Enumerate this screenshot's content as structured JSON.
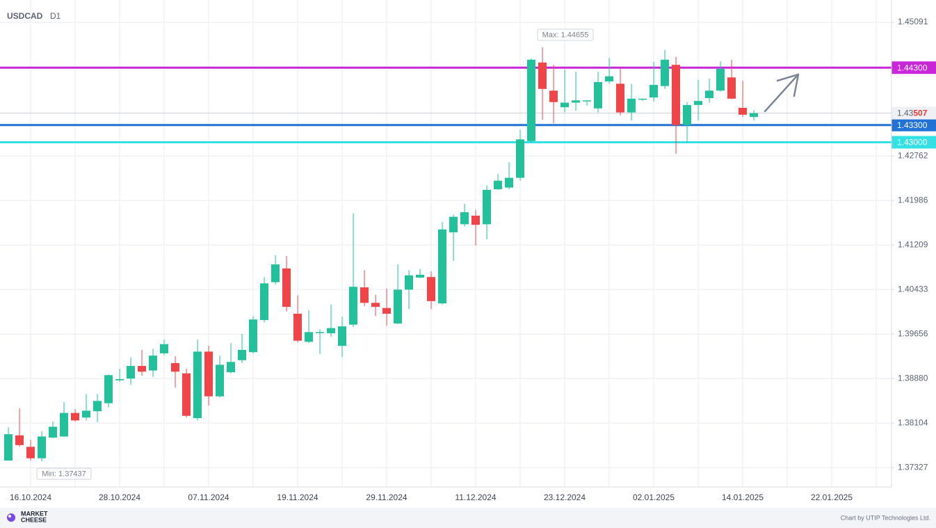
{
  "chart_data": {
    "type": "candlestick",
    "title": "USDCAD",
    "subtitle": "D1",
    "categories": [
      null,
      null,
      "16.10.2024",
      null,
      null,
      null,
      null,
      null,
      null,
      null,
      "28.10.2024",
      null,
      null,
      null,
      null,
      null,
      null,
      null,
      "07.11.2024",
      null,
      null,
      null,
      null,
      null,
      null,
      null,
      "19.11.2024",
      null,
      null,
      null,
      null,
      null,
      null,
      null,
      "29.11.2024",
      null,
      null,
      null,
      null,
      null,
      null,
      null,
      "11.12.2024",
      null,
      null,
      null,
      null,
      null,
      null,
      null,
      "23.12.2024",
      null,
      null,
      null,
      null,
      null,
      null,
      null,
      "02.01.2025",
      null,
      null,
      null,
      null,
      null,
      null,
      null,
      "14.01.2025",
      null,
      null,
      null,
      null,
      null,
      null,
      null,
      "22.01.2025",
      null,
      null,
      null,
      null,
      null
    ],
    "open": [
      1.3745,
      1.3789,
      1.3769,
      1.3749,
      1.3785,
      1.3787,
      1.3828,
      1.382,
      1.3831,
      1.3845,
      1.3885,
      1.3888,
      1.391,
      1.3902,
      1.3932,
      1.3915,
      1.3897,
      1.3819,
      1.3935,
      1.3857,
      1.3899,
      1.392,
      1.3934,
      1.399,
      1.4056,
      1.408,
      1.4001,
      1.3952,
      1.3968,
      1.3967,
      1.3945,
      1.3982,
      1.4047,
      1.402,
      1.4011,
      1.3984,
      1.4043,
      1.4064,
      1.4065,
      1.4019,
      1.4143,
      1.4157,
      1.4172,
      1.4157,
      1.4218,
      1.4221,
      1.4238,
      1.4302,
      1.4439,
      1.439,
      1.4361,
      1.4369,
      1.4372,
      1.4359,
      1.4406,
      1.4402,
      1.4352,
      1.4375,
      1.4378,
      1.4398,
      1.4435,
      1.433,
      1.4365,
      1.4377,
      1.439,
      1.4413,
      1.436,
      1.4344,
      null,
      null,
      null,
      null,
      null,
      null,
      null,
      null,
      null,
      null,
      null,
      null
    ],
    "high": [
      1.3803,
      1.3836,
      1.3781,
      1.3796,
      1.3813,
      1.3847,
      1.3835,
      1.3861,
      1.3861,
      1.3895,
      1.3905,
      1.3925,
      1.3938,
      1.394,
      1.3956,
      1.3927,
      1.3905,
      1.3956,
      1.3945,
      1.3928,
      1.395,
      1.3966,
      1.3997,
      1.4065,
      1.4103,
      1.4102,
      1.4033,
      1.4007,
      1.3974,
      1.4017,
      1.3996,
      1.4176,
      1.4077,
      1.4034,
      1.4045,
      1.4087,
      1.4077,
      1.4079,
      1.4075,
      1.4161,
      1.4174,
      1.4193,
      1.4182,
      1.4225,
      1.4245,
      1.4265,
      1.4322,
      1.4446,
      1.44655,
      1.4435,
      1.4427,
      1.4423,
      1.4373,
      1.4423,
      1.4447,
      1.4429,
      1.4402,
      1.4376,
      1.444,
      1.4461,
      1.4449,
      1.437,
      1.4409,
      1.4411,
      1.4441,
      1.4444,
      1.4407,
      1.4356,
      null,
      null,
      null,
      null,
      null,
      null,
      null,
      null,
      null,
      null,
      null,
      null
    ],
    "low": [
      1.3745,
      1.3769,
      1.3745,
      1.37437,
      1.3784,
      1.3786,
      1.3813,
      1.3815,
      1.3812,
      1.3838,
      1.3882,
      1.3877,
      1.3893,
      1.3891,
      1.3929,
      1.3872,
      1.382,
      1.3815,
      1.3841,
      1.3855,
      1.3897,
      1.3915,
      1.3932,
      1.3986,
      1.4052,
      1.4005,
      1.3951,
      1.395,
      1.3931,
      1.3961,
      1.3926,
      1.3978,
      1.4014,
      1.3997,
      1.398,
      1.3983,
      1.4009,
      1.4063,
      1.4009,
      1.4017,
      1.4093,
      1.4153,
      1.412,
      1.4131,
      1.4217,
      1.4218,
      1.4233,
      1.4299,
      1.4339,
      1.4333,
      1.4352,
      1.4355,
      1.4364,
      1.4352,
      1.4402,
      1.4347,
      1.4338,
      1.4372,
      1.4371,
      1.4393,
      1.428,
      1.4299,
      1.4338,
      1.4369,
      1.4388,
      1.4375,
      1.4344,
      1.4338,
      null,
      null,
      null,
      null,
      null,
      null,
      null,
      null,
      null,
      null,
      null,
      null
    ],
    "close": [
      1.3791,
      1.3772,
      1.3749,
      1.3787,
      1.3804,
      1.3828,
      1.3815,
      1.3832,
      1.3849,
      1.3894,
      1.3887,
      1.391,
      1.39,
      1.3928,
      1.3948,
      1.39,
      1.3823,
      1.3935,
      1.3857,
      1.3912,
      1.3917,
      1.3938,
      1.3991,
      1.4054,
      1.4087,
      1.4013,
      1.3954,
      1.3969,
      1.3969,
      1.3976,
      1.3979,
      1.4048,
      1.402,
      1.4013,
      1.4001,
      1.4043,
      1.4068,
      1.4069,
      1.4023,
      1.4148,
      1.417,
      1.4178,
      1.4156,
      1.4217,
      1.4233,
      1.4238,
      1.4305,
      1.4444,
      1.4393,
      1.437,
      1.4369,
      1.4373,
      1.4373,
      1.4405,
      1.4415,
      1.4352,
      1.4376,
      1.4376,
      1.44,
      1.4444,
      1.433,
      1.4365,
      1.4372,
      1.439,
      1.4428,
      1.4376,
      1.4348,
      1.43507,
      null,
      null,
      null,
      null,
      null,
      null,
      null,
      null,
      null,
      null,
      null,
      null
    ],
    "up_color": "#22c19c",
    "down_color": "#ef4548",
    "ylim": [
      1.3699,
      1.4548
    ],
    "yticks": [
      1.45091,
      1.42762,
      1.41986,
      1.41209,
      1.40433,
      1.39656,
      {
        "value": 1.3888,
        "label": "1.38880"
      },
      1.38104,
      1.37327
    ],
    "grid": true,
    "levels": [
      {
        "value": 1.443,
        "label": "1.44300",
        "color": "#c925d9"
      },
      {
        "value": 1.433,
        "label": "1.43300",
        "color": "#2272d6"
      },
      {
        "value": 1.43,
        "label": "1.43000",
        "color": "#33e0e4"
      }
    ],
    "max_label": "Max: 1.44655",
    "min_label": "Min: 1.37437"
  },
  "footer": {
    "brand_top": "MARKET",
    "brand_bottom": "CHEESE",
    "credit": "Chart by UTIP Technologies Ltd."
  }
}
